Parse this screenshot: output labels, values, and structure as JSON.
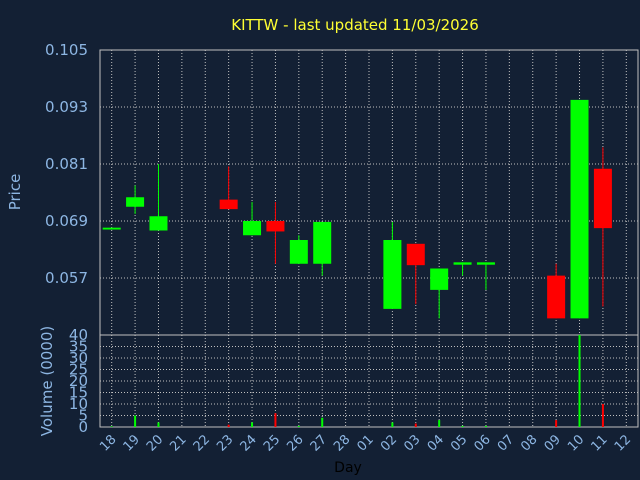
{
  "chart_data": [
    {
      "type": "candlestick",
      "title": "KITTW - last updated 11/03/2026",
      "ylabel": "Price",
      "ylim": [
        0.045,
        0.105
      ],
      "yticks": [
        "0.105",
        "0.093",
        "0.081",
        "0.069",
        "0.057"
      ],
      "ytick_values": [
        0.105,
        0.093,
        0.081,
        0.069,
        0.057
      ],
      "grid": true,
      "up_color": "#00ff00",
      "down_color": "#ff0000",
      "categories": [
        "18",
        "19",
        "20",
        "21",
        "22",
        "23",
        "24",
        "25",
        "26",
        "27",
        "28",
        "01",
        "02",
        "03",
        "04",
        "05",
        "06",
        "07",
        "08",
        "09",
        "10",
        "11",
        "12"
      ],
      "candles": [
        {
          "x": "18",
          "open": 0.0672,
          "close": 0.0676,
          "high": 0.0676,
          "low": 0.0672
        },
        {
          "x": "19",
          "open": 0.072,
          "close": 0.074,
          "high": 0.0765,
          "low": 0.0705
        },
        {
          "x": "20",
          "open": 0.067,
          "close": 0.07,
          "high": 0.081,
          "low": 0.067
        },
        {
          "x": "23",
          "open": 0.0735,
          "close": 0.0715,
          "high": 0.0805,
          "low": 0.0715
        },
        {
          "x": "24",
          "open": 0.066,
          "close": 0.069,
          "high": 0.073,
          "low": 0.066
        },
        {
          "x": "25",
          "open": 0.069,
          "close": 0.0668,
          "high": 0.073,
          "low": 0.06
        },
        {
          "x": "26",
          "open": 0.06,
          "close": 0.065,
          "high": 0.066,
          "low": 0.06
        },
        {
          "x": "27",
          "open": 0.06,
          "close": 0.0688,
          "high": 0.0688,
          "low": 0.0575
        },
        {
          "x": "02",
          "open": 0.0505,
          "close": 0.065,
          "high": 0.0688,
          "low": 0.0505
        },
        {
          "x": "03",
          "open": 0.0642,
          "close": 0.0597,
          "high": 0.0642,
          "low": 0.0515
        },
        {
          "x": "04",
          "open": 0.0545,
          "close": 0.059,
          "high": 0.059,
          "low": 0.0485
        },
        {
          "x": "05",
          "open": 0.0598,
          "close": 0.0603,
          "high": 0.0603,
          "low": 0.0575
        },
        {
          "x": "06",
          "open": 0.0598,
          "close": 0.0603,
          "high": 0.0603,
          "low": 0.0545
        },
        {
          "x": "09",
          "open": 0.0575,
          "close": 0.0485,
          "high": 0.06,
          "low": 0.0485
        },
        {
          "x": "10",
          "open": 0.0485,
          "close": 0.0945,
          "high": 0.0945,
          "low": 0.0485
        },
        {
          "x": "11",
          "open": 0.08,
          "close": 0.0675,
          "high": 0.0845,
          "low": 0.051
        }
      ]
    },
    {
      "type": "bar",
      "ylabel": "Volume (0000)",
      "ylim": [
        0,
        40
      ],
      "yticks": [
        "40",
        "35",
        "30",
        "25",
        "20",
        "15",
        "10",
        "5",
        "0"
      ],
      "ytick_values": [
        40,
        35,
        30,
        25,
        20,
        15,
        10,
        5,
        0
      ],
      "xlabel": "Day",
      "grid": true,
      "categories": [
        "18",
        "19",
        "20",
        "21",
        "22",
        "23",
        "24",
        "25",
        "26",
        "27",
        "28",
        "01",
        "02",
        "03",
        "04",
        "05",
        "06",
        "07",
        "08",
        "09",
        "10",
        "11",
        "12"
      ],
      "bars": [
        {
          "x": "18",
          "value": 0.3,
          "color": "#00ff00"
        },
        {
          "x": "19",
          "value": 5,
          "color": "#00ff00"
        },
        {
          "x": "20",
          "value": 2,
          "color": "#00ff00"
        },
        {
          "x": "23",
          "value": 1,
          "color": "#ff0000"
        },
        {
          "x": "24",
          "value": 2,
          "color": "#00ff00"
        },
        {
          "x": "25",
          "value": 6,
          "color": "#ff0000"
        },
        {
          "x": "26",
          "value": 0.5,
          "color": "#00ff00"
        },
        {
          "x": "27",
          "value": 4,
          "color": "#00ff00"
        },
        {
          "x": "02",
          "value": 2,
          "color": "#00ff00"
        },
        {
          "x": "03",
          "value": 1.5,
          "color": "#ff0000"
        },
        {
          "x": "04",
          "value": 3,
          "color": "#00ff00"
        },
        {
          "x": "05",
          "value": 0.5,
          "color": "#00ff00"
        },
        {
          "x": "06",
          "value": 0.5,
          "color": "#00ff00"
        },
        {
          "x": "09",
          "value": 3,
          "color": "#ff0000"
        },
        {
          "x": "10",
          "value": 40,
          "color": "#00ff00"
        },
        {
          "x": "11",
          "value": 10,
          "color": "#ff0000"
        }
      ]
    }
  ]
}
